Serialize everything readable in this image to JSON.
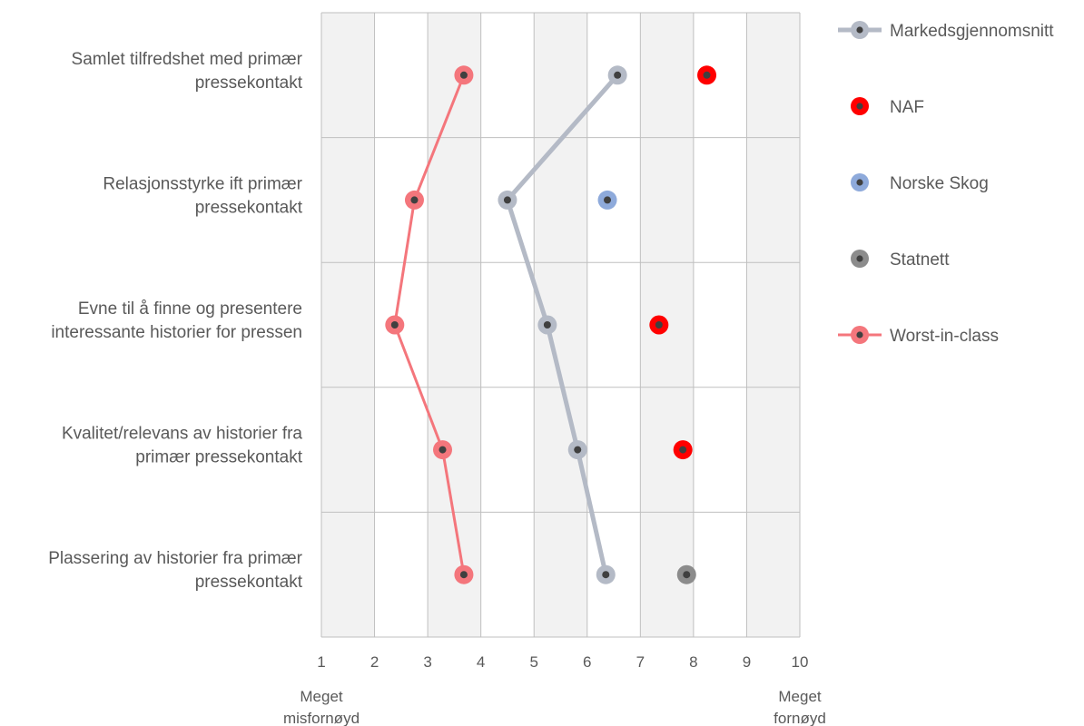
{
  "chart_data": {
    "type": "scatter",
    "orientation": "horizontal-values",
    "xlim": [
      1,
      10
    ],
    "x_ticks": [
      "1",
      "2",
      "3",
      "4",
      "5",
      "6",
      "7",
      "8",
      "9",
      "10"
    ],
    "axis_end_labels": {
      "left": [
        "Meget",
        "misfornøyd"
      ],
      "right": [
        "Meget",
        "fornøyd"
      ]
    },
    "categories": [
      [
        "Samlet tilfredshet med primær",
        "pressekontakt"
      ],
      [
        "Relasjonsstyrke ift primær",
        "pressekontakt"
      ],
      [
        "Evne til å finne og presentere",
        "interessante historier for pressen"
      ],
      [
        "Kvalitet/relevans av historier fra",
        "primær pressekontakt"
      ],
      [
        "Plassering av historier fra primær",
        "pressekontakt"
      ]
    ],
    "grid": true,
    "legend_position": "right",
    "series": [
      {
        "name": "Markedsgjennomsnitt",
        "color": "#b4bac6",
        "line": true,
        "values": [
          6.57,
          4.5,
          5.25,
          5.82,
          6.35
        ]
      },
      {
        "name": "NAF",
        "color": "#ff0000",
        "line": false,
        "values": [
          8.25,
          null,
          7.35,
          7.8,
          null
        ]
      },
      {
        "name": "Norske Skog",
        "color": "#8eaadb",
        "line": false,
        "values": [
          null,
          6.38,
          null,
          null,
          null
        ]
      },
      {
        "name": "Statnett",
        "color": "#8c8c8c",
        "line": false,
        "values": [
          null,
          null,
          null,
          null,
          7.87
        ]
      },
      {
        "name": "Worst-in-class",
        "color": "#f4767c",
        "line": true,
        "values": [
          3.68,
          2.75,
          2.38,
          3.28,
          3.68
        ]
      }
    ]
  }
}
